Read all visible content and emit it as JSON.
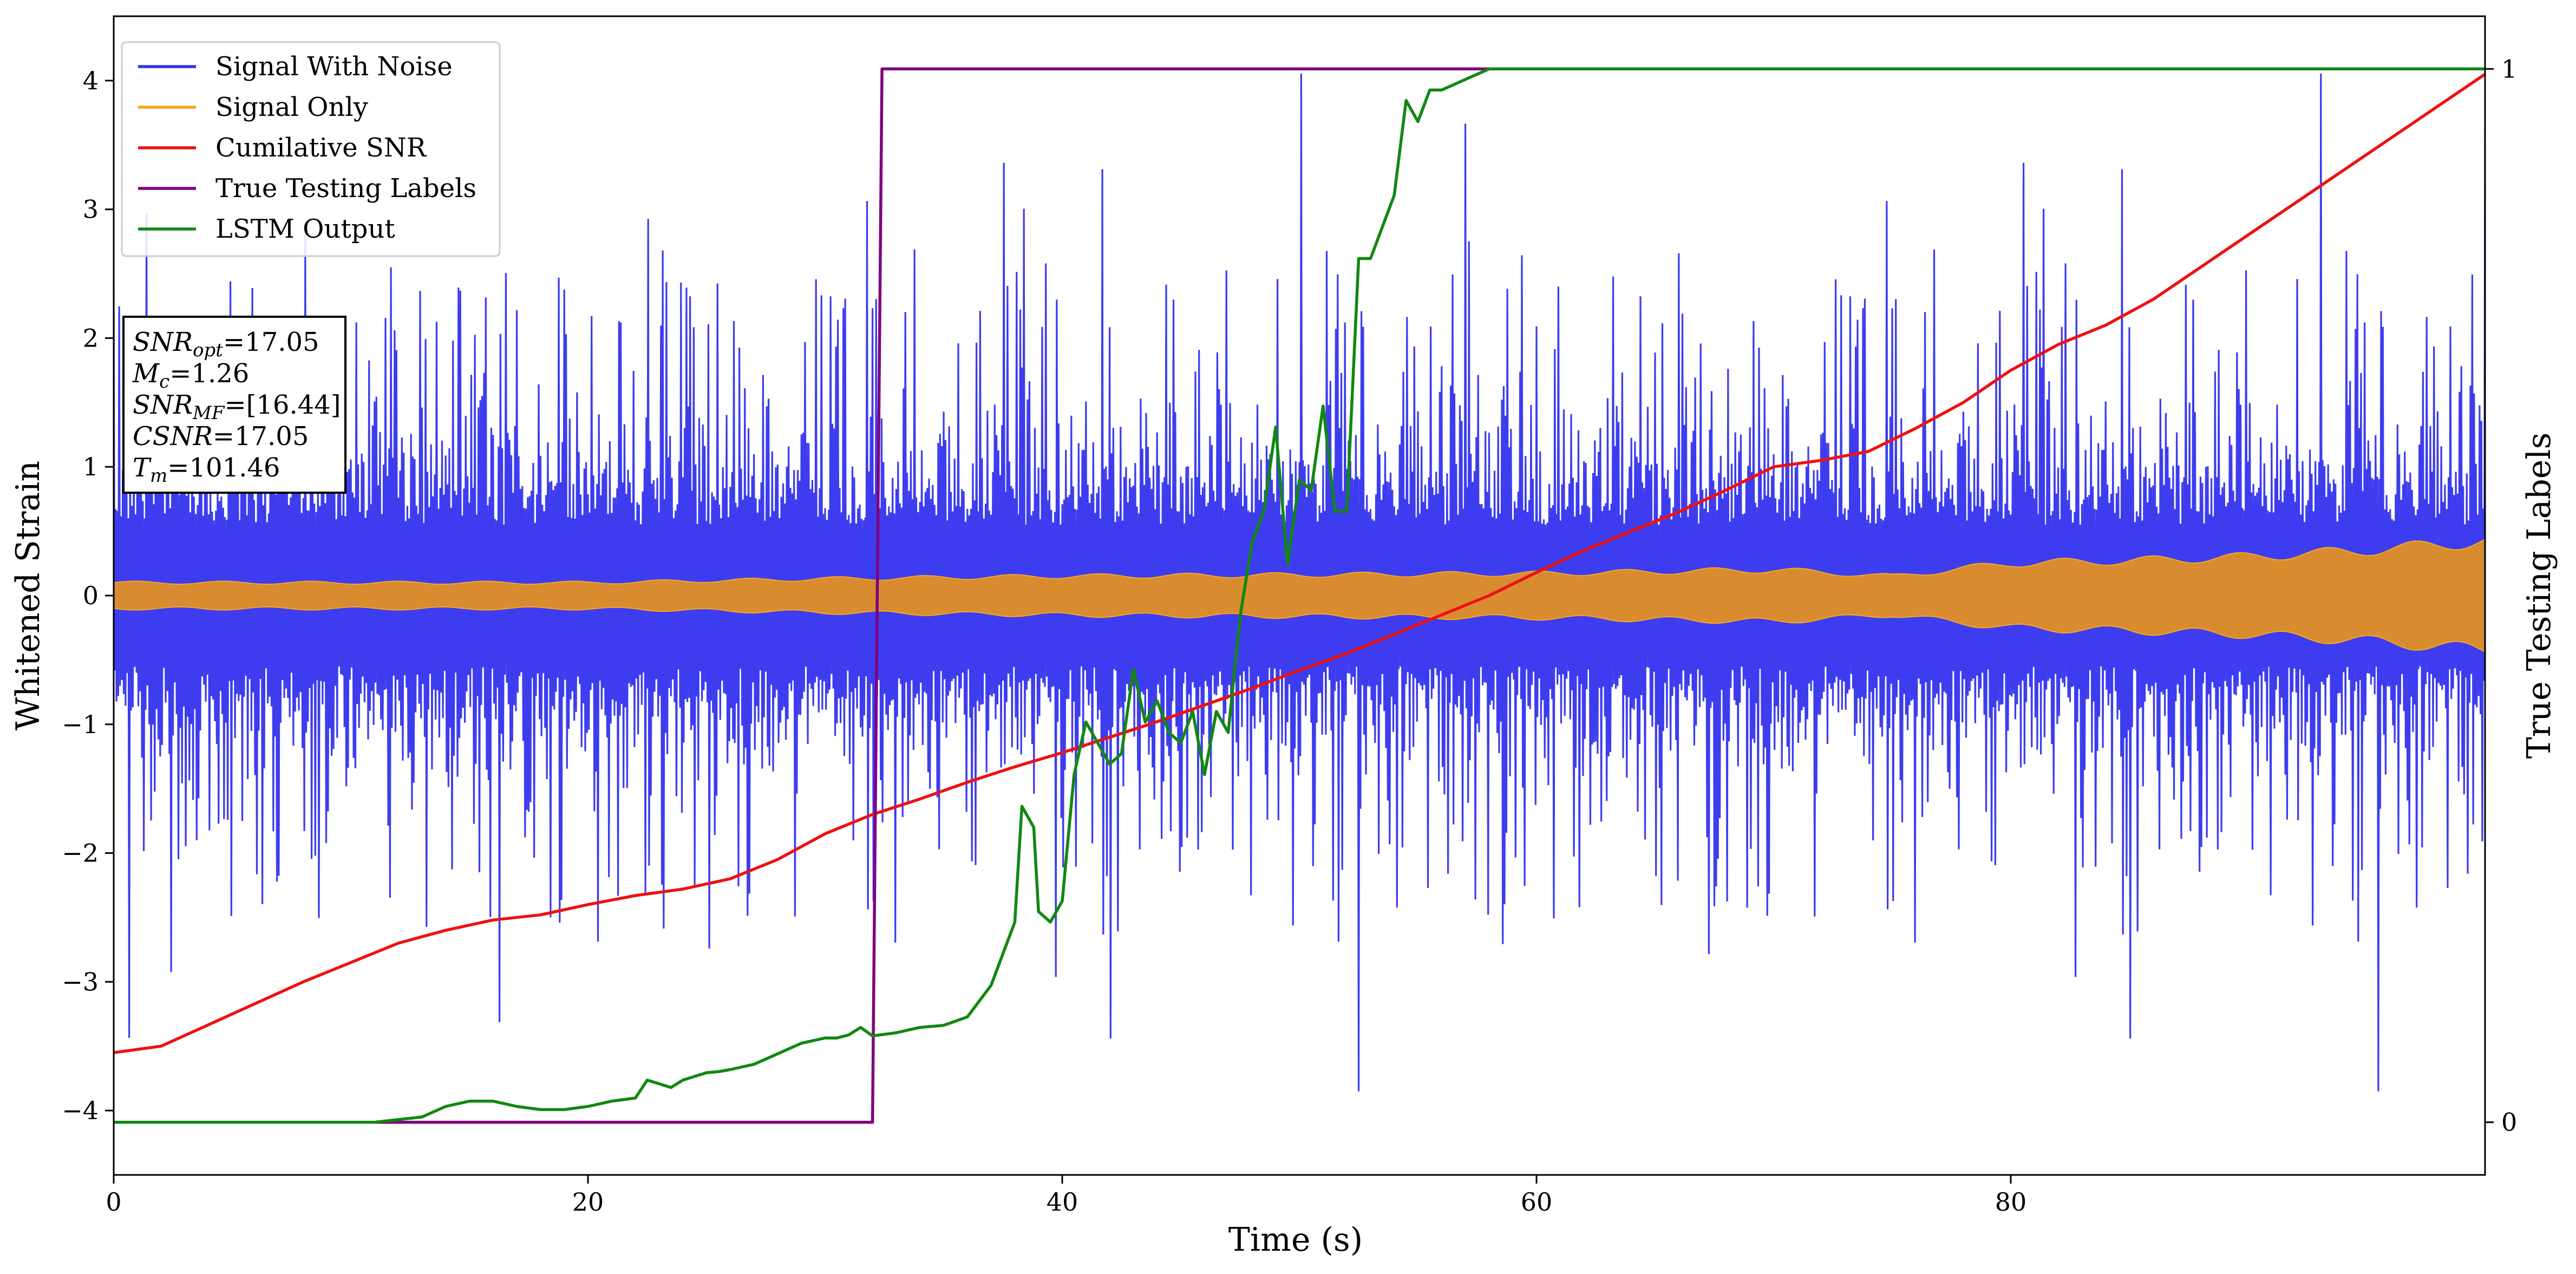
{
  "chart_data": {
    "type": "line",
    "title": "",
    "xlabel": "Time (s)",
    "ylabel": "Whitened Strain",
    "y2label": "True Testing Labels",
    "xlim": [
      0,
      100
    ],
    "ylim": [
      -4.5,
      4.5
    ],
    "y2lim": [
      -0.05,
      1.05
    ],
    "grid": false,
    "legend_position": "top-left",
    "x_ticks": [
      0,
      20,
      40,
      60,
      80
    ],
    "x_tick_labels": [
      "0",
      "20",
      "40",
      "60",
      "80"
    ],
    "y_ticks": [
      -4,
      -3,
      -2,
      -1,
      0,
      1,
      2,
      3,
      4
    ],
    "y_tick_labels": [
      "−4",
      "−3",
      "−2",
      "−1",
      "0",
      "1",
      "2",
      "3",
      "4"
    ],
    "y2_ticks": [
      0,
      1
    ],
    "y2_tick_labels": [
      "0",
      "1"
    ],
    "series": [
      {
        "name": "Signal With Noise",
        "color": "#3333ee",
        "axis": "left",
        "style": "dense-noise",
        "core_amplitude": 0.55,
        "typical_peak": 2.4,
        "max_peak": 4.1
      },
      {
        "name": "Signal Only",
        "color": "#f5a623",
        "axis": "left",
        "style": "oscillation-envelope",
        "envelope_x": [
          0,
          10,
          20,
          30,
          40,
          50,
          60,
          70,
          75,
          80,
          85,
          90,
          95,
          100
        ],
        "envelope_y": [
          0.1,
          0.1,
          0.1,
          0.13,
          0.15,
          0.16,
          0.17,
          0.2,
          0.15,
          0.25,
          0.27,
          0.3,
          0.35,
          0.42
        ]
      },
      {
        "name": "Cumilative SNR",
        "color": "#ee1111",
        "axis": "left",
        "x": [
          0,
          2,
          5,
          8,
          10,
          12,
          14,
          16,
          18,
          20,
          22,
          24,
          26,
          28,
          30,
          32,
          34,
          36,
          38,
          40,
          42,
          44,
          46,
          48,
          50,
          52,
          54,
          56,
          58,
          60,
          62,
          64,
          66,
          68,
          70,
          72,
          74,
          76,
          78,
          80,
          82,
          84,
          86,
          88,
          90,
          92,
          94,
          96,
          98,
          100
        ],
        "y": [
          -3.55,
          -3.5,
          -3.25,
          -3.0,
          -2.85,
          -2.7,
          -2.6,
          -2.52,
          -2.48,
          -2.4,
          -2.33,
          -2.28,
          -2.2,
          -2.05,
          -1.85,
          -1.7,
          -1.58,
          -1.45,
          -1.33,
          -1.22,
          -1.1,
          -0.98,
          -0.85,
          -0.72,
          -0.58,
          -0.45,
          -0.3,
          -0.15,
          0.0,
          0.18,
          0.35,
          0.5,
          0.65,
          0.82,
          1.0,
          1.05,
          1.12,
          1.3,
          1.5,
          1.75,
          1.95,
          2.1,
          2.3,
          2.55,
          2.8,
          3.05,
          3.3,
          3.55,
          3.8,
          4.05
        ]
      },
      {
        "name": "True Testing Labels",
        "color": "#800080",
        "axis": "right",
        "x": [
          0,
          32.0,
          32.4,
          100
        ],
        "y": [
          0,
          0,
          1,
          1
        ]
      },
      {
        "name": "LSTM Output",
        "color": "#118811",
        "axis": "right",
        "x": [
          0,
          11,
          13,
          14,
          15,
          16,
          17,
          18,
          19,
          20,
          21,
          22,
          22.5,
          23.5,
          24,
          25,
          25.5,
          26,
          27,
          28,
          29,
          30,
          30.5,
          31,
          31.5,
          32,
          33,
          34,
          35,
          36,
          37,
          38,
          38.3,
          38.8,
          39,
          39.5,
          40,
          40.5,
          41,
          41.5,
          42,
          42.5,
          43,
          43.5,
          44,
          44.5,
          45,
          45.5,
          46,
          46.5,
          47,
          47.5,
          48,
          48.5,
          49,
          49.5,
          50,
          50.5,
          51,
          51.5,
          52,
          52.5,
          53,
          54,
          54.5,
          55,
          55.5,
          56,
          57,
          58,
          60,
          62,
          65,
          100
        ],
        "y": [
          0,
          0,
          0.005,
          0.015,
          0.02,
          0.02,
          0.015,
          0.012,
          0.012,
          0.015,
          0.02,
          0.023,
          0.04,
          0.033,
          0.04,
          0.047,
          0.048,
          0.05,
          0.055,
          0.065,
          0.075,
          0.08,
          0.08,
          0.083,
          0.09,
          0.082,
          0.085,
          0.09,
          0.092,
          0.1,
          0.13,
          0.19,
          0.3,
          0.28,
          0.2,
          0.19,
          0.21,
          0.33,
          0.38,
          0.36,
          0.34,
          0.35,
          0.43,
          0.38,
          0.4,
          0.37,
          0.36,
          0.39,
          0.33,
          0.39,
          0.37,
          0.48,
          0.55,
          0.58,
          0.66,
          0.53,
          0.61,
          0.6,
          0.68,
          0.58,
          0.58,
          0.82,
          0.82,
          0.88,
          0.97,
          0.95,
          0.98,
          0.98,
          0.99,
          1.0,
          1.0,
          1.0,
          1.0,
          1.0
        ]
      }
    ],
    "annotation_lines": [
      {
        "base": "SNR",
        "sub": "opt",
        "rest": "=17.05"
      },
      {
        "base": "M",
        "sub": "c",
        "rest": "=1.26"
      },
      {
        "base": "SNR",
        "sub": "MF",
        "rest": "=[16.44]"
      },
      {
        "base": "CSNR",
        "sub": "",
        "rest": "=17.05"
      },
      {
        "base": "T",
        "sub": "m",
        "rest": "=101.46"
      }
    ]
  }
}
